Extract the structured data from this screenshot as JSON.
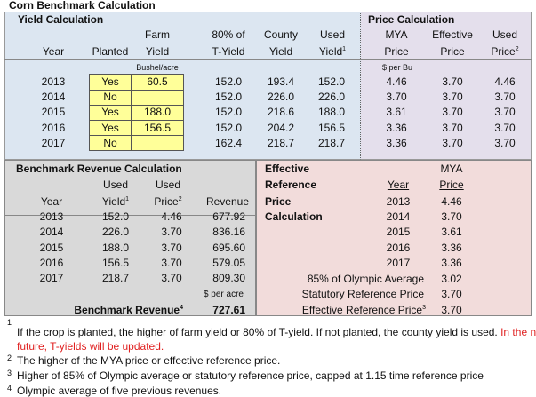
{
  "title": "Corn Benchmark Calculation",
  "yield_calc": {
    "title": "Yield Calculation",
    "headers": {
      "year": "Year",
      "planted": "Planted",
      "farm_1": "Farm",
      "farm_2": "Yield",
      "tyield_1": "80% of",
      "tyield_2": "T-Yield",
      "county_1": "County",
      "county_2": "Yield",
      "used_1": "Used",
      "used_2": "Yield",
      "used_sup": "1"
    },
    "unit": "Bushel/acre",
    "rows": [
      {
        "year": "2013",
        "planted": "Yes",
        "farm": "60.5",
        "tyield": "152.0",
        "county": "193.4",
        "used": "152.0"
      },
      {
        "year": "2014",
        "planted": "No",
        "farm": "",
        "tyield": "152.0",
        "county": "226.0",
        "used": "226.0"
      },
      {
        "year": "2015",
        "planted": "Yes",
        "farm": "188.0",
        "tyield": "152.0",
        "county": "218.6",
        "used": "188.0"
      },
      {
        "year": "2016",
        "planted": "Yes",
        "farm": "156.5",
        "tyield": "152.0",
        "county": "204.2",
        "used": "156.5"
      },
      {
        "year": "2017",
        "planted": "No",
        "farm": "",
        "tyield": "162.4",
        "county": "218.7",
        "used": "218.7"
      }
    ]
  },
  "price_calc": {
    "title": "Price Calculation",
    "headers": {
      "mya_1": "MYA",
      "mya_2": "Price",
      "eff_1": "Effective",
      "eff_2": "Price",
      "used_1": "Used",
      "used_2": "Price",
      "used_sup": "2"
    },
    "unit": "$ per Bu",
    "rows": [
      {
        "mya": "4.46",
        "eff": "3.70",
        "used": "4.46"
      },
      {
        "mya": "3.70",
        "eff": "3.70",
        "used": "3.70"
      },
      {
        "mya": "3.61",
        "eff": "3.70",
        "used": "3.70"
      },
      {
        "mya": "3.36",
        "eff": "3.70",
        "used": "3.70"
      },
      {
        "mya": "3.36",
        "eff": "3.70",
        "used": "3.70"
      }
    ]
  },
  "benchmark": {
    "title": "Benchmark Revenue Calculation",
    "headers": {
      "year": "Year",
      "yield_1": "Used",
      "yield_2": "Yield",
      "yield_sup": "1",
      "price_1": "Used",
      "price_2": "Price",
      "price_sup": "2",
      "revenue": "Revenue"
    },
    "rows": [
      {
        "year": "2013",
        "yield": "152.0",
        "price": "4.46",
        "revenue": "677.92"
      },
      {
        "year": "2014",
        "yield": "226.0",
        "price": "3.70",
        "revenue": "836.16"
      },
      {
        "year": "2015",
        "yield": "188.0",
        "price": "3.70",
        "revenue": "695.60"
      },
      {
        "year": "2016",
        "yield": "156.5",
        "price": "3.70",
        "revenue": "579.05"
      },
      {
        "year": "2017",
        "yield": "218.7",
        "price": "3.70",
        "revenue": "809.30"
      }
    ],
    "unit": "$ per acre",
    "total_label": "Benchmark Revenue",
    "total_sup": "4",
    "total_value": "727.61"
  },
  "effective_ref": {
    "title_lines": [
      "Effective",
      "Reference",
      "Price",
      "Calculation"
    ],
    "headers": {
      "year": "Year",
      "mya_1": "MYA",
      "mya_2": "Price"
    },
    "rows": [
      {
        "year": "2013",
        "mya": "4.46"
      },
      {
        "year": "2014",
        "mya": "3.70"
      },
      {
        "year": "2015",
        "mya": "3.61"
      },
      {
        "year": "2016",
        "mya": "3.36"
      },
      {
        "year": "2017",
        "mya": "3.36"
      }
    ],
    "olympic_label": "85% of Olympic Average",
    "olympic_value": "3.02",
    "statutory_label": "Statutory Reference Price",
    "statutory_value": "3.70",
    "effective_label": "Effective Reference Price",
    "effective_sup": "3",
    "effective_value": "3.70"
  },
  "footnotes": [
    {
      "num": "1",
      "text": "If the crop is planted, the higher of farm yield or 80% of T-yield.  If not planted, the county yield is used.",
      "red_1": "In the near",
      "red_2": "future, T-yields will be updated."
    },
    {
      "num": "2",
      "text": "The higher of the MYA price or effective reference price."
    },
    {
      "num": "3",
      "text": "Higher of 85% of Olympic average or statutory reference price, capped at 1.15 time reference price"
    },
    {
      "num": "4",
      "text": "Olympic average of five previous revenues."
    }
  ],
  "colors": {
    "yield_bg": "#dce6f1",
    "price_bg": "#e4dfec",
    "input_bg": "#ffff99",
    "bench_bg": "#d9d9d9",
    "eff_bg": "#f2dcdb",
    "note_red": "#e02020"
  }
}
